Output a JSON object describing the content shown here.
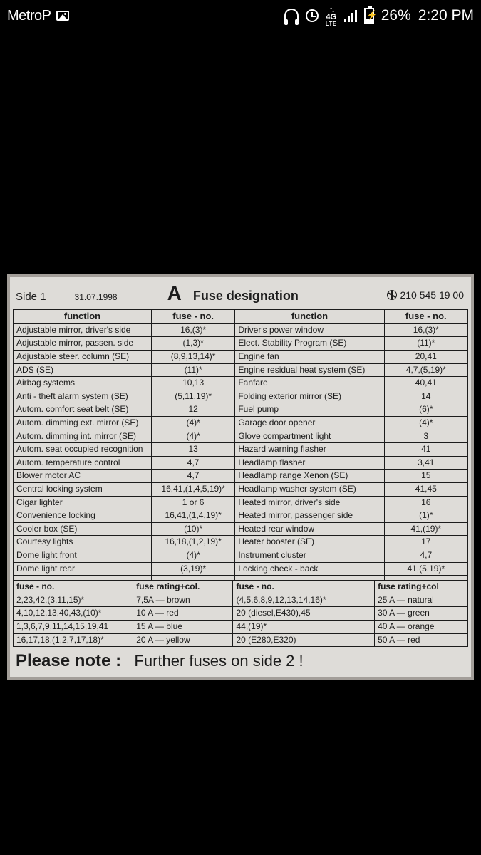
{
  "statusbar": {
    "carrier": "MetroP",
    "battery_pct": "26%",
    "clock": "2:20 PM",
    "net_top": "↑↓",
    "net_label": "4G",
    "net_sub": "LTE"
  },
  "card": {
    "side": "Side 1",
    "date": "31.07.1998",
    "letter": "A",
    "title": "Fuse designation",
    "part_no": "210 545 19 00",
    "headers": {
      "function": "function",
      "fuse_no": "fuse - no.",
      "function2": "function",
      "fuse_no2": "fuse - no."
    },
    "rows": [
      [
        "Adjustable mirror, driver's side",
        "16,(3)*",
        "Driver's power window",
        "16,(3)*"
      ],
      [
        "Adjustable mirror, passen. side",
        "(1,3)*",
        "Elect. Stability Program (SE)",
        "(11)*"
      ],
      [
        "Adjustable steer. column (SE)",
        "(8,9,13,14)*",
        "Engine fan",
        "20,41"
      ],
      [
        "ADS (SE)",
        "(11)*",
        "Engine residual heat system (SE)",
        "4,7,(5,19)*"
      ],
      [
        "Airbag systems",
        "10,13",
        "Fanfare",
        "40,41"
      ],
      [
        "Anti - theft alarm system (SE)",
        "(5,11,19)*",
        "Folding exterior mirror (SE)",
        "14"
      ],
      [
        "Autom. comfort seat belt (SE)",
        "12",
        "Fuel pump",
        "(6)*"
      ],
      [
        "Autom. dimming ext. mirror (SE)",
        "(4)*",
        "Garage door opener",
        "(4)*"
      ],
      [
        "Autom. dimming int. mirror (SE)",
        "(4)*",
        "Glove compartment light",
        "3"
      ],
      [
        "Autom. seat occupied recognition",
        "13",
        "Hazard warning flasher",
        "41"
      ],
      [
        "Autom. temperature control",
        "4,7",
        "Headlamp flasher",
        "3,41"
      ],
      [
        "Blower motor AC",
        "4,7",
        "Headlamp range Xenon (SE)",
        "15"
      ],
      [
        "Central locking system",
        "16,41,(1,4,5,19)*",
        "Headlamp washer system (SE)",
        "41,45"
      ],
      [
        "Cigar lighter",
        "1 or 6",
        "Heated mirror, driver's side",
        "16"
      ],
      [
        "Convenience locking",
        "16,41,(1,4,19)*",
        "Heated mirror, passenger side",
        "(1)*"
      ],
      [
        "Cooler box (SE)",
        "(10)*",
        "Heated rear window",
        "41,(19)*"
      ],
      [
        "Courtesy lights",
        "16,18,(1,2,19)*",
        "Heater booster (SE)",
        "17"
      ],
      [
        "Dome light front",
        "(4)*",
        "Instrument cluster",
        "4,7"
      ],
      [
        "Dome light rear",
        "(3,19)*",
        "Locking check - back",
        "41,(5,19)*"
      ]
    ],
    "ratings_headers": {
      "c1": "fuse - no.",
      "c2": "fuse rating+col.",
      "c3": "fuse - no.",
      "c4": "fuse rating+col"
    },
    "ratings_rows": [
      [
        "2,23,42,(3,11,15)*",
        "7,5A — brown",
        "(4,5,6,8,9,12,13,14,16)*",
        "25 A — natural"
      ],
      [
        "4,10,12,13,40,43,(10)*",
        "10 A — red",
        "20 (diesel,E430),45",
        "30 A — green"
      ],
      [
        "1,3,6,7,9,11,14,15,19,41",
        "15 A — blue",
        "44,(19)*",
        "40 A — orange"
      ],
      [
        "16,17,18,(1,2,7,17,18)*",
        "20 A — yellow",
        "20 (E280,E320)",
        "50 A — red"
      ]
    ],
    "note_bold": "Please note :",
    "note_rest": "Further fuses on side 2 !"
  }
}
